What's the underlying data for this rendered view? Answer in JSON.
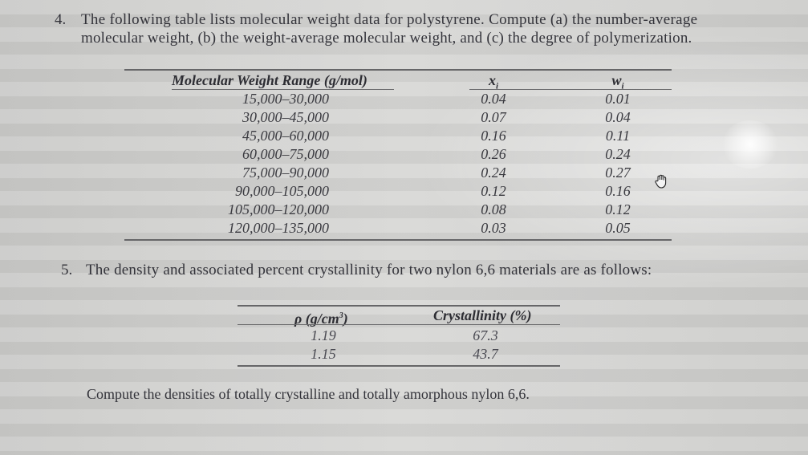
{
  "q4": {
    "number": "4.",
    "line1": "The following table lists molecular weight data for polystyrene. Compute (a) the number-average",
    "line2": "molecular weight, (b) the weight-average molecular weight, and (c) the degree of polymerization."
  },
  "table1": {
    "headers": [
      "Molecular Weight Range (g/mol)",
      "x",
      "w"
    ],
    "header_subscript": "i",
    "rows": [
      [
        "15,000–30,000",
        "0.04",
        "0.01"
      ],
      [
        "30,000–45,000",
        "0.07",
        "0.04"
      ],
      [
        "45,000–60,000",
        "0.16",
        "0.11"
      ],
      [
        "60,000–75,000",
        "0.26",
        "0.24"
      ],
      [
        "75,000–90,000",
        "0.24",
        "0.27"
      ],
      [
        "90,000–105,000",
        "0.12",
        "0.16"
      ],
      [
        "105,000–120,000",
        "0.08",
        "0.12"
      ],
      [
        "120,000–135,000",
        "0.03",
        "0.05"
      ]
    ]
  },
  "q5": {
    "number": "5.",
    "text": "The density and associated percent crystallinity for two nylon 6,6 materials are as follows:"
  },
  "table2": {
    "headers": [
      "ρ (g/cm",
      "3",
      ")",
      "Crystallinity (%)"
    ],
    "rows": [
      [
        "1.19",
        "67.3"
      ],
      [
        "1.15",
        "43.7"
      ]
    ]
  },
  "compute": "Compute the densities of totally crystalline and totally amorphous nylon 6,6.",
  "icons": {
    "cursor": "hand-cursor-icon"
  }
}
